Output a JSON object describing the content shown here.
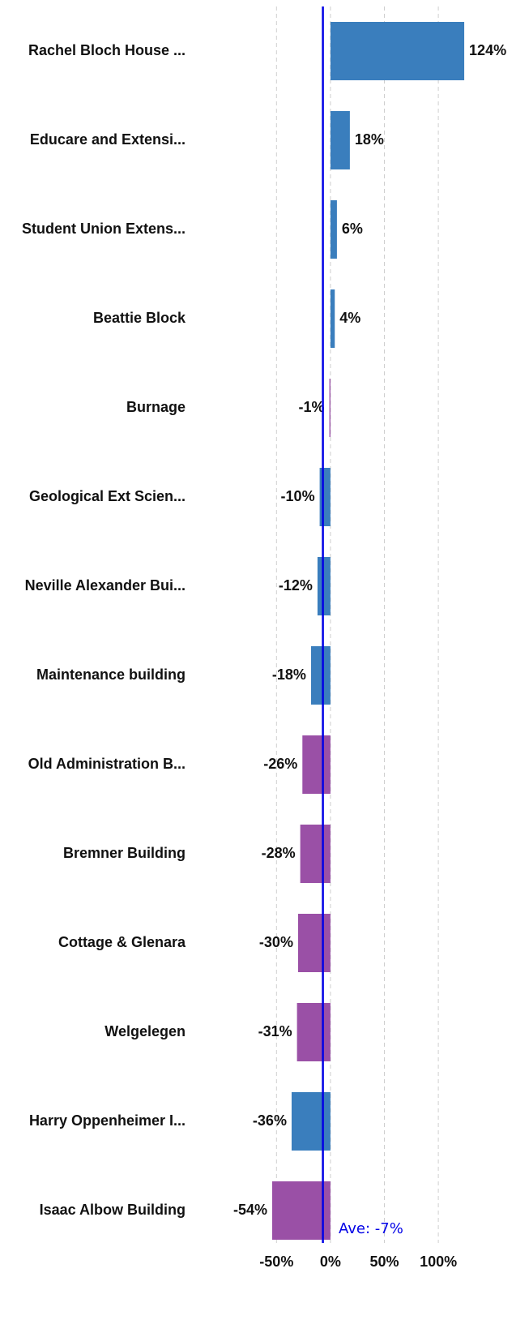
{
  "chart_data": {
    "type": "bar",
    "orientation": "horizontal",
    "categories": [
      "Rachel Bloch House ...",
      "Educare and Extensi...",
      "Student Union Extens...",
      "Beattie Block",
      "Burnage",
      "Geological Ext Scien...",
      "Neville Alexander Bui...",
      "Maintenance building",
      "Old Administration B...",
      "Bremner Building",
      "Cottage & Glenara",
      "Welgelegen",
      "Harry Oppenheimer I...",
      "Isaac Albow Building"
    ],
    "values": [
      124,
      18,
      6,
      4,
      -1,
      -10,
      -12,
      -18,
      -26,
      -28,
      -30,
      -31,
      -36,
      -54
    ],
    "value_labels": [
      "124%",
      "18%",
      "6%",
      "4%",
      "-1%",
      "-10%",
      "-12%",
      "-18%",
      "-26%",
      "-28%",
      "-30%",
      "-31%",
      "-36%",
      "-54%"
    ],
    "colors": [
      "#3a7ebd",
      "#3a7ebd",
      "#3a7ebd",
      "#3a7ebd",
      "#9a50a6",
      "#3a7ebd",
      "#3a7ebd",
      "#3a7ebd",
      "#9a50a6",
      "#9a50a6",
      "#9a50a6",
      "#9a50a6",
      "#3a7ebd",
      "#9a50a6"
    ],
    "xlim": [
      -60,
      160
    ],
    "xticks": [
      {
        "value": -50,
        "label": "-50%"
      },
      {
        "value": 0,
        "label": "0%"
      },
      {
        "value": 50,
        "label": "50%"
      },
      {
        "value": 100,
        "label": "100%"
      }
    ],
    "grid": true,
    "average": {
      "value": -7,
      "label": "Ave: -7%",
      "color": "#0000e6"
    }
  }
}
